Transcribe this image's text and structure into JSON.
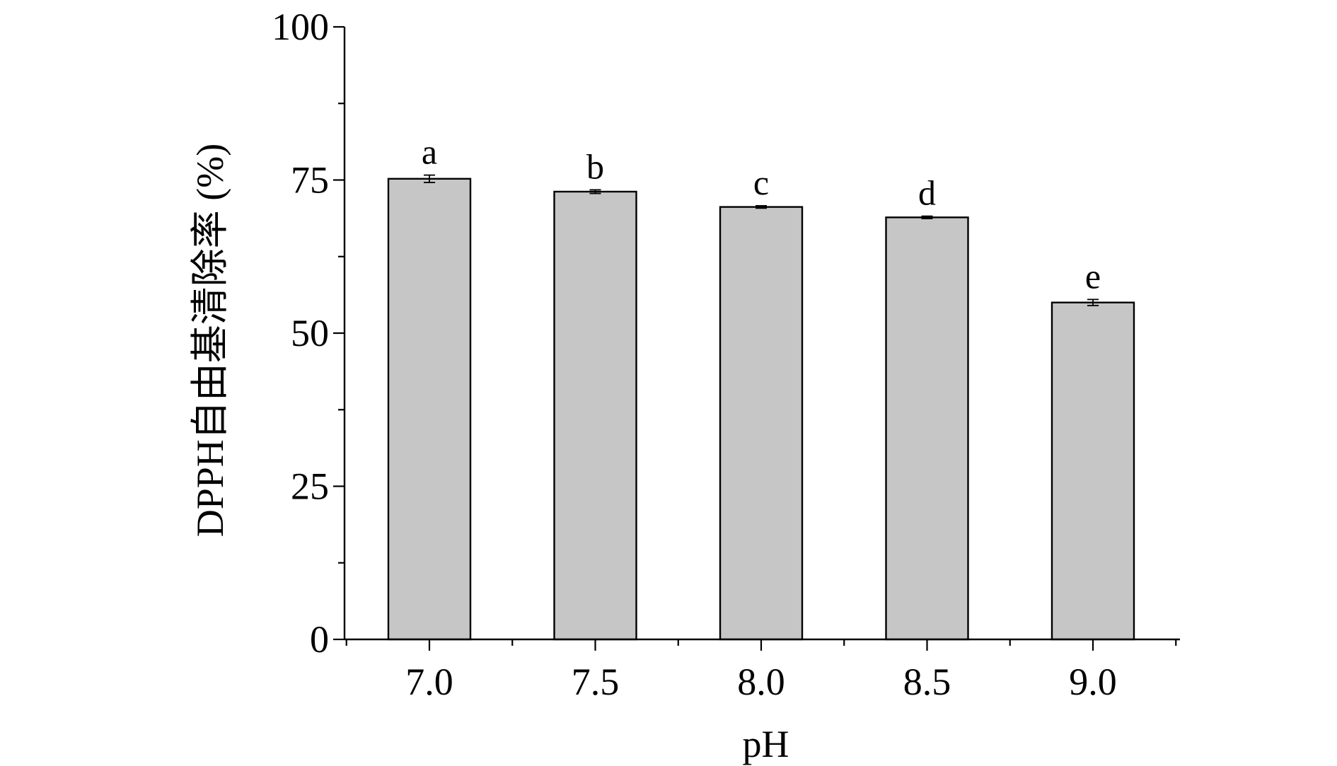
{
  "chart_data": {
    "type": "bar",
    "categories": [
      "7.0",
      "7.5",
      "8.0",
      "8.5",
      "9.0"
    ],
    "values": [
      75.2,
      73.1,
      70.6,
      68.9,
      55.0
    ],
    "errors": [
      0.6,
      0.3,
      0.2,
      0.2,
      0.5
    ],
    "significance_letters": [
      "a",
      "b",
      "c",
      "d",
      "e"
    ],
    "xlabel": "pH",
    "ylabel": "DPPH自由基清除率 (%)",
    "ylim": [
      0,
      100
    ],
    "yticks": [
      0,
      25,
      50,
      75,
      100
    ],
    "ytick_labels": [
      "0",
      "25",
      "50",
      "75",
      "100"
    ],
    "colors": {
      "bar_fill": "#c6c6c6",
      "bar_stroke": "#000000"
    },
    "grid": false,
    "legend": "none"
  }
}
